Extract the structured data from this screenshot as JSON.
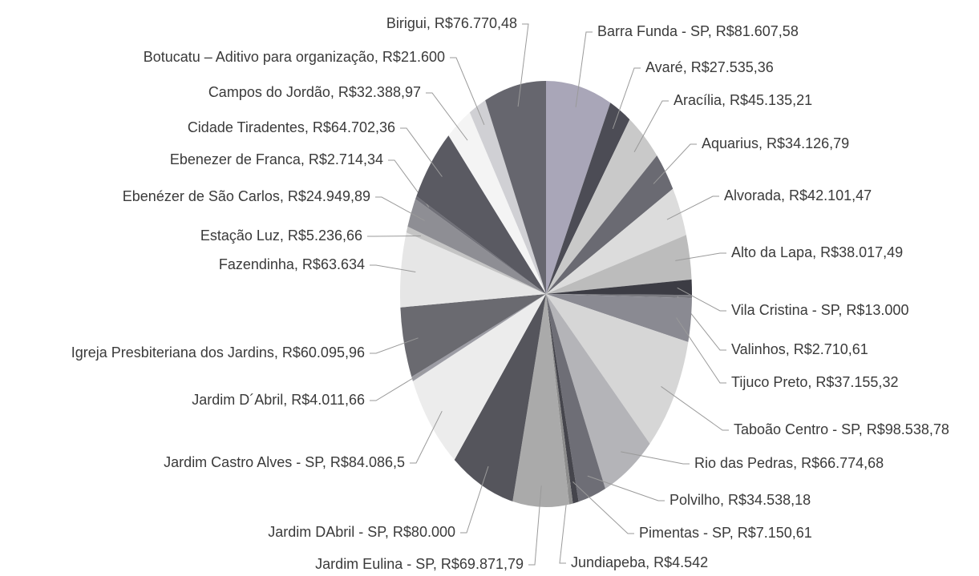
{
  "chart_data": {
    "type": "pie",
    "values": [
      81607.58,
      27535.36,
      45135.21,
      34126.79,
      42101.47,
      38017.49,
      13000,
      2710.61,
      37155.32,
      98538.78,
      66774.68,
      34538.18,
      7150.61,
      4542,
      69871.79,
      80000,
      84086.5,
      4011.66,
      60095.96,
      63634,
      5236.66,
      24949.89,
      2714.34,
      64702.36,
      32388.97,
      21600,
      76770.48
    ],
    "value_labels": [
      "Barra Funda - SP, R$81.607,58",
      "Avaré, R$27.535,36",
      "Aracília, R$45.135,21",
      "Aquarius, R$34.126,79",
      "Alvorada, R$42.101,47",
      "Alto da Lapa, R$38.017,49",
      "Vila Cristina - SP, R$13.000",
      "Valinhos, R$2.710,61",
      "Tijuco Preto, R$37.155,32",
      "Taboão Centro  - SP, R$98.538,78",
      "Rio das Pedras, R$66.774,68",
      "Polvilho, R$34.538,18",
      "Pimentas - SP, R$7.150,61",
      "Jundiapeba, R$4.542",
      "Jardim Eulina - SP, R$69.871,79",
      "Jardim DAbril - SP, R$80.000",
      "Jardim Castro Alves - SP, R$84.086,5",
      "Jardim  D´Abril, R$4.011,66",
      "Igreja Presbiteriana dos Jardins, R$60.095,96",
      "Fazendinha, R$63.634",
      "Estação Luz, R$5.236,66",
      "Ebenézer de São Carlos, R$24.949,89",
      "Ebenezer de Franca, R$2.714,34",
      "Cidade Tiradentes, R$64.702,36",
      "Campos do Jordão, R$32.388,97",
      "Botucatu – Aditivo para organização, R$21.600",
      "Birigui, R$76.770,48"
    ],
    "colors": [
      "#a9a6b8",
      "#4c4c55",
      "#c9c9c9",
      "#6a6a72",
      "#dcdcdc",
      "#bcbcbc",
      "#3c3c44",
      "#7a7a80",
      "#8a8a92",
      "#d6d6d6",
      "#b4b4b8",
      "#6e6e76",
      "#45454c",
      "#8c8c8c",
      "#aaaaaa",
      "#55555c",
      "#ececec",
      "#9c9ca4",
      "#6a6a70",
      "#e6e6e6",
      "#c4c4c4",
      "#8e8e94",
      "#707078",
      "#5a5a62",
      "#f4f4f4",
      "#d0d0d4",
      "#66666e"
    ]
  }
}
